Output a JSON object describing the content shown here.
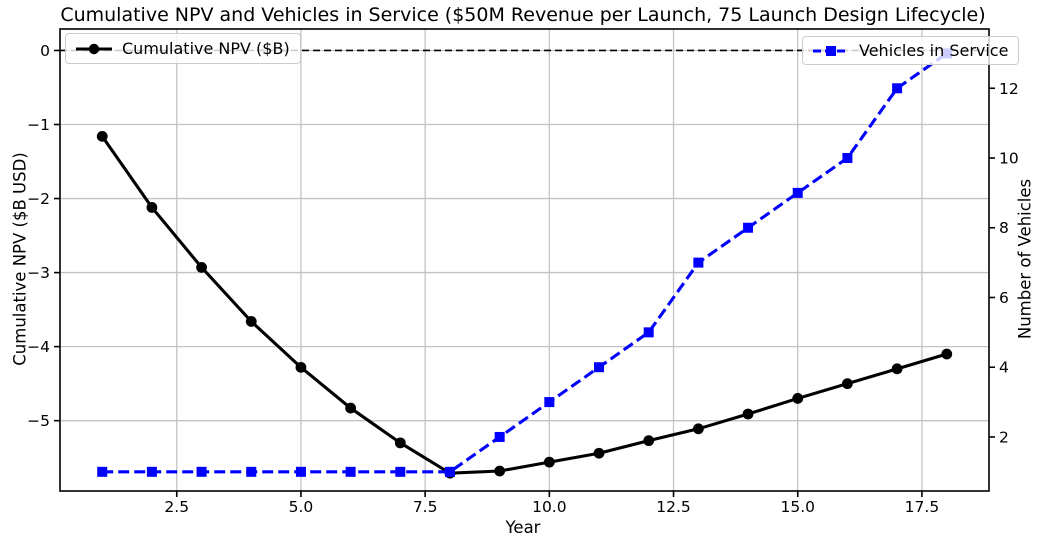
{
  "chart_data": {
    "type": "line",
    "title": "Cumulative NPV and Vehicles in Service ($50M Revenue per Launch, 75 Launch Design Lifecycle)",
    "xlabel": "Year",
    "ylabel_left": "Cumulative NPV ($B USD)",
    "ylabel_right": "Number of Vehicles",
    "x": [
      1,
      2,
      3,
      4,
      5,
      6,
      7,
      8,
      9,
      10,
      11,
      12,
      13,
      14,
      15,
      16,
      17,
      18
    ],
    "series": [
      {
        "name": "Cumulative NPV ($B)",
        "axis": "left",
        "color": "#000000",
        "line_style": "solid",
        "marker": "circle",
        "values": [
          -1.16,
          -2.12,
          -2.93,
          -3.66,
          -4.28,
          -4.83,
          -5.3,
          -5.71,
          -5.68,
          -5.56,
          -5.44,
          -5.27,
          -5.11,
          -4.91,
          -4.7,
          -4.5,
          -4.3,
          -4.1
        ]
      },
      {
        "name": "Vehicles in Service",
        "axis": "right",
        "color": "#0000ff",
        "line_style": "dashed",
        "marker": "square",
        "values": [
          1,
          1,
          1,
          1,
          1,
          1,
          1,
          1,
          2,
          3,
          4,
          5,
          7,
          8,
          9,
          10,
          12,
          13
        ]
      }
    ],
    "reference_line": {
      "axis": "left",
      "value": 0,
      "color": "#000000",
      "style": "dashed"
    },
    "x_ticks": {
      "values": [
        2.5,
        5.0,
        7.5,
        10.0,
        12.5,
        15.0,
        17.5
      ],
      "labels": [
        "2.5",
        "5.0",
        "7.5",
        "10.0",
        "12.5",
        "15.0",
        "17.5"
      ]
    },
    "y_ticks_left": {
      "values": [
        0,
        -1,
        -2,
        -3,
        -4,
        -5
      ],
      "labels": [
        "0",
        "−1",
        "−2",
        "−3",
        "−4",
        "−5"
      ]
    },
    "y_ticks_right": {
      "values": [
        2,
        4,
        6,
        8,
        10,
        12
      ],
      "labels": [
        "2",
        "4",
        "6",
        "8",
        "10",
        "12"
      ]
    },
    "xlim": [
      0.15,
      18.85
    ],
    "ylim_left": [
      -5.95,
      0.29
    ],
    "ylim_right": [
      0.45,
      13.7
    ],
    "grid": true,
    "legend": [
      {
        "label": "Cumulative NPV ($B)",
        "position": "upper-left"
      },
      {
        "label": "Vehicles in Service",
        "position": "upper-right"
      }
    ],
    "colors": {
      "background": "#ffffff",
      "grid": "#c3c3c3",
      "spine": "#000000",
      "tick": "#000000",
      "tick_label": "#000000",
      "legend_border": "#cccccc"
    }
  }
}
